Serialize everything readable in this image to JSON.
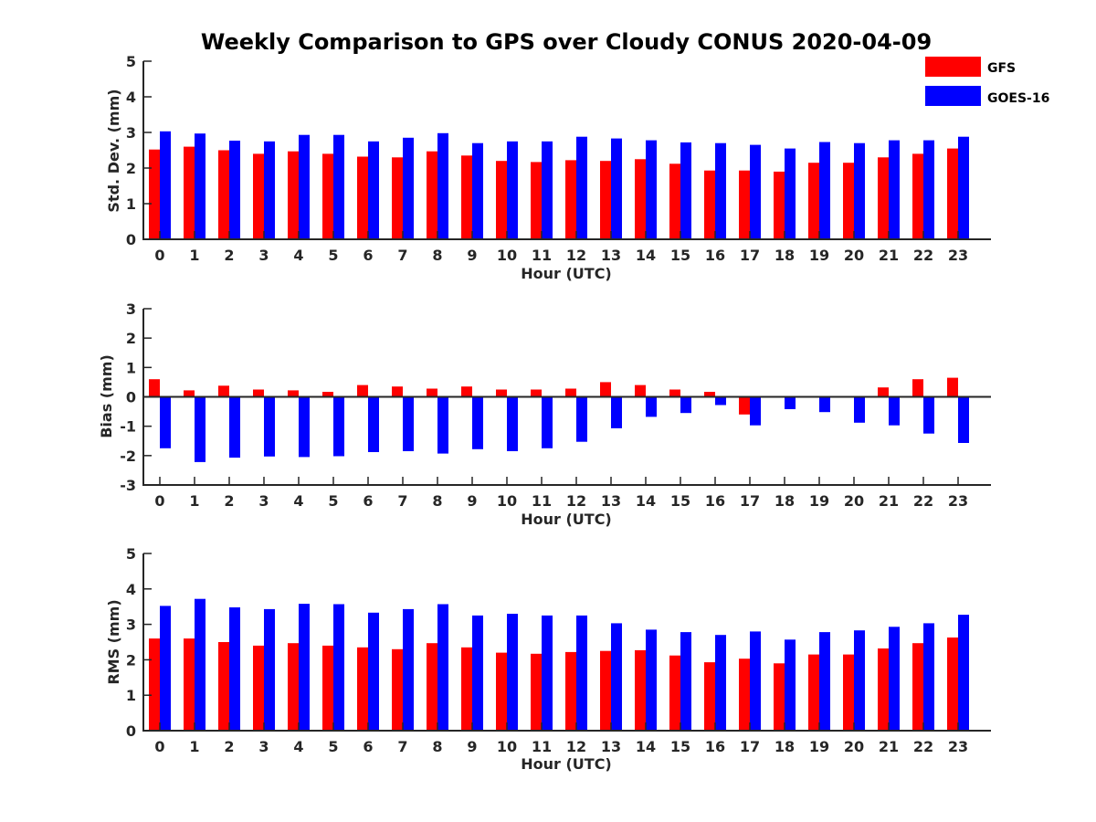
{
  "figure": {
    "title": "Weekly Comparison to GPS over Cloudy CONUS 2020-04-09",
    "legend": {
      "placement": "top-right",
      "entries": [
        {
          "label": "GFS",
          "color": "#ff0000"
        },
        {
          "label": "GOES-16",
          "color": "#0000ff"
        }
      ]
    }
  },
  "chart_data": [
    {
      "type": "bar",
      "xlabel": "Hour (UTC)",
      "ylabel": "Std. Dev. (mm)",
      "ylim": [
        0,
        5
      ],
      "yticks": [
        0,
        1,
        2,
        3,
        4,
        5
      ],
      "categories": [
        "0",
        "1",
        "2",
        "3",
        "4",
        "5",
        "6",
        "7",
        "8",
        "9",
        "10",
        "11",
        "12",
        "13",
        "14",
        "15",
        "16",
        "17",
        "18",
        "19",
        "20",
        "21",
        "22",
        "23"
      ],
      "series": [
        {
          "name": "GFS",
          "color": "#ff0000",
          "values": [
            2.52,
            2.6,
            2.5,
            2.4,
            2.47,
            2.4,
            2.32,
            2.3,
            2.47,
            2.35,
            2.2,
            2.17,
            2.22,
            2.2,
            2.25,
            2.12,
            1.93,
            1.93,
            1.9,
            2.15,
            2.15,
            2.3,
            2.4,
            2.55
          ]
        },
        {
          "name": "GOES-16",
          "color": "#0000ff",
          "values": [
            3.03,
            2.97,
            2.77,
            2.75,
            2.93,
            2.93,
            2.75,
            2.85,
            2.98,
            2.7,
            2.75,
            2.75,
            2.88,
            2.83,
            2.78,
            2.72,
            2.7,
            2.65,
            2.55,
            2.73,
            2.7,
            2.78,
            2.78,
            2.88
          ]
        }
      ]
    },
    {
      "type": "bar",
      "xlabel": "Hour (UTC)",
      "ylabel": "Bias (mm)",
      "ylim": [
        -3,
        3
      ],
      "yticks": [
        -3,
        -2,
        -1,
        0,
        1,
        2,
        3
      ],
      "categories": [
        "0",
        "1",
        "2",
        "3",
        "4",
        "5",
        "6",
        "7",
        "8",
        "9",
        "10",
        "11",
        "12",
        "13",
        "14",
        "15",
        "16",
        "17",
        "18",
        "19",
        "20",
        "21",
        "22",
        "23"
      ],
      "series": [
        {
          "name": "GFS",
          "color": "#ff0000",
          "values": [
            0.6,
            0.22,
            0.38,
            0.25,
            0.22,
            0.17,
            0.4,
            0.35,
            0.28,
            0.35,
            0.25,
            0.25,
            0.28,
            0.5,
            0.4,
            0.25,
            0.17,
            -0.6,
            -0.03,
            0.03,
            0.0,
            0.32,
            0.6,
            0.65
          ]
        },
        {
          "name": "GOES-16",
          "color": "#0000ff",
          "values": [
            -1.75,
            -2.22,
            -2.07,
            -2.03,
            -2.05,
            -2.02,
            -1.88,
            -1.85,
            -1.93,
            -1.78,
            -1.85,
            -1.75,
            -1.53,
            -1.07,
            -0.68,
            -0.55,
            -0.28,
            -0.97,
            -0.42,
            -0.52,
            -0.88,
            -0.97,
            -1.25,
            -1.57
          ]
        }
      ]
    },
    {
      "type": "bar",
      "xlabel": "Hour (UTC)",
      "ylabel": "RMS (mm)",
      "ylim": [
        0,
        5
      ],
      "yticks": [
        0,
        1,
        2,
        3,
        4,
        5
      ],
      "categories": [
        "0",
        "1",
        "2",
        "3",
        "4",
        "5",
        "6",
        "7",
        "8",
        "9",
        "10",
        "11",
        "12",
        "13",
        "14",
        "15",
        "16",
        "17",
        "18",
        "19",
        "20",
        "21",
        "22",
        "23"
      ],
      "series": [
        {
          "name": "GFS",
          "color": "#ff0000",
          "values": [
            2.6,
            2.6,
            2.5,
            2.4,
            2.47,
            2.4,
            2.35,
            2.3,
            2.47,
            2.35,
            2.2,
            2.17,
            2.22,
            2.25,
            2.27,
            2.12,
            1.93,
            2.03,
            1.9,
            2.15,
            2.15,
            2.32,
            2.47,
            2.63
          ]
        },
        {
          "name": "GOES-16",
          "color": "#0000ff",
          "values": [
            3.52,
            3.72,
            3.48,
            3.43,
            3.58,
            3.57,
            3.33,
            3.43,
            3.57,
            3.25,
            3.3,
            3.25,
            3.25,
            3.03,
            2.85,
            2.78,
            2.7,
            2.8,
            2.57,
            2.78,
            2.83,
            2.93,
            3.03,
            3.27
          ]
        }
      ]
    }
  ]
}
